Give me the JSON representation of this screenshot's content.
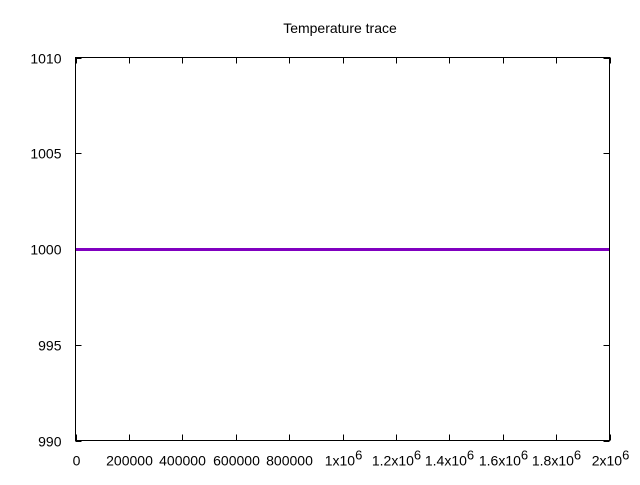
{
  "chart_data": {
    "type": "line",
    "title": "Temperature trace",
    "xlabel": "",
    "ylabel": "",
    "xlim": [
      0,
      2000000
    ],
    "ylim": [
      990,
      1010
    ],
    "grid": false,
    "legend": "none",
    "x_ticks": [
      {
        "value": 0,
        "label": "0",
        "exp": ""
      },
      {
        "value": 200000,
        "label": "200000",
        "exp": ""
      },
      {
        "value": 400000,
        "label": "400000",
        "exp": ""
      },
      {
        "value": 600000,
        "label": "600000",
        "exp": ""
      },
      {
        "value": 800000,
        "label": "800000",
        "exp": ""
      },
      {
        "value": 1000000,
        "label": "1x10",
        "exp": "6"
      },
      {
        "value": 1200000,
        "label": "1.2x10",
        "exp": "6"
      },
      {
        "value": 1400000,
        "label": "1.4x10",
        "exp": "6"
      },
      {
        "value": 1600000,
        "label": "1.6x10",
        "exp": "6"
      },
      {
        "value": 1800000,
        "label": "1.8x10",
        "exp": "6"
      },
      {
        "value": 2000000,
        "label": "2x10",
        "exp": "6"
      }
    ],
    "y_ticks": [
      {
        "value": 990,
        "label": "990"
      },
      {
        "value": 995,
        "label": "995"
      },
      {
        "value": 1000,
        "label": "1000"
      },
      {
        "value": 1005,
        "label": "1005"
      },
      {
        "value": 1010,
        "label": "1010"
      }
    ],
    "series": [
      {
        "color": "#8000c0",
        "x": [
          0,
          2000000
        ],
        "y": [
          1000,
          1000
        ]
      }
    ]
  }
}
